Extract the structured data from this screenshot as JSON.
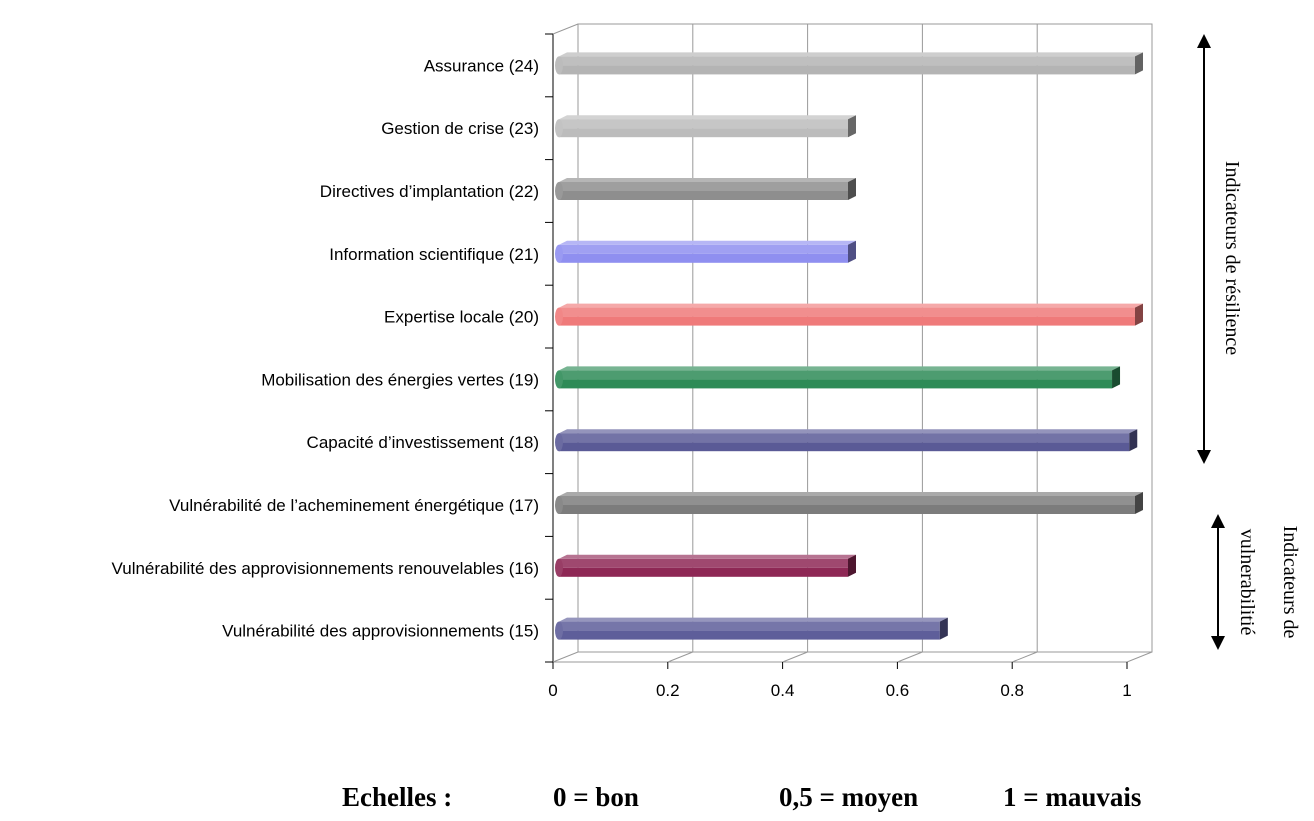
{
  "chart_data": {
    "type": "bar",
    "orientation": "horizontal",
    "categories": [
      "Assurance (24)",
      "Gestion de crise (23)",
      "Directives d’implantation (22)",
      "Information scientifique (21)",
      "Expertise locale (20)",
      "Mobilisation des énergies vertes (19)",
      "Capacité d’investissement (18)",
      "Vulnérabilité de l’acheminement énergétique (17)",
      "Vulnérabilité des approvisionnements renouvelables (16)",
      "Vulnérabilité des approvisionnements (15)"
    ],
    "values": [
      1.0,
      0.5,
      0.5,
      0.5,
      1.0,
      0.96,
      0.99,
      1.0,
      0.5,
      0.66
    ],
    "colors": [
      "#b4b4b4",
      "#bcbcbc",
      "#8e8e8e",
      "#8f8ff0",
      "#ef7a7a",
      "#2e8b57",
      "#5a5a96",
      "#7c7c7c",
      "#8e2855",
      "#5e5e9a"
    ],
    "xlim": [
      0,
      1
    ],
    "xticks": [
      "0",
      "0.2",
      "0.4",
      "0.6",
      "0.8",
      "1"
    ],
    "grid": true,
    "side_labels": {
      "resilience": "Indicateurs de résilience",
      "vulnerability_line1": "Indicateurs de",
      "vulnerability_line2": "vulnerabilitié"
    },
    "scale": {
      "title": "Echelles :",
      "good": "0 = bon",
      "medium": "0,5 = moyen",
      "bad": "1 = mauvais"
    }
  }
}
